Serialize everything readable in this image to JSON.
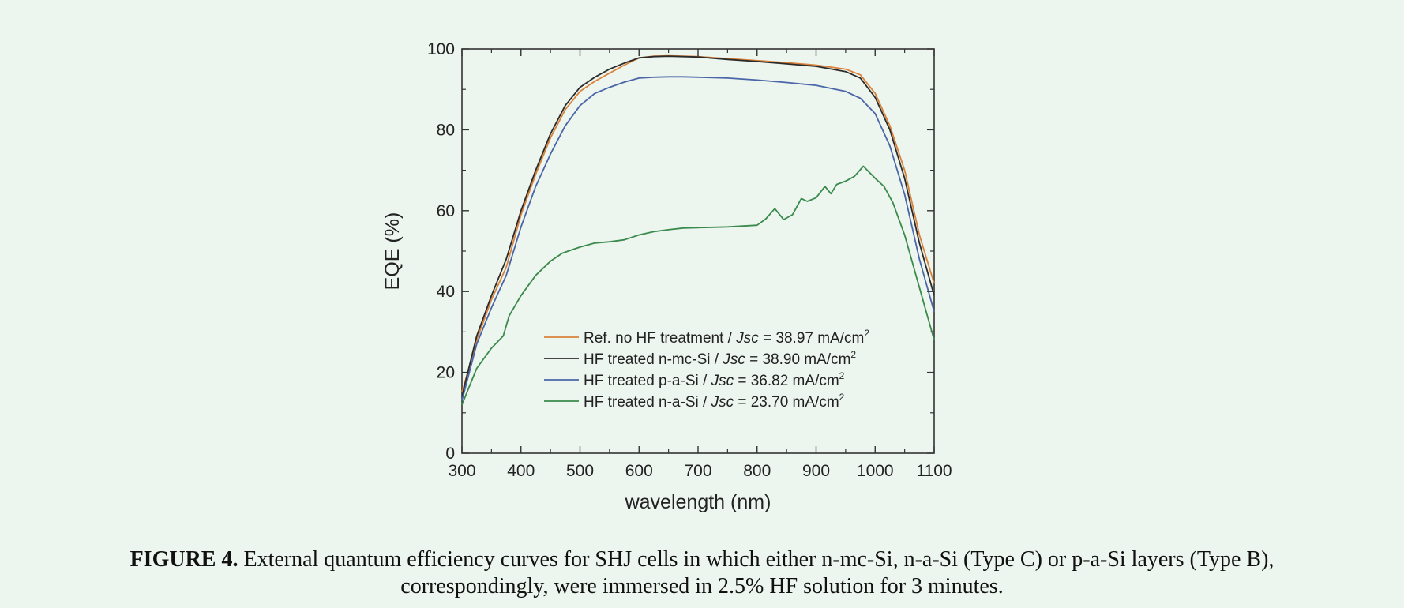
{
  "chart_data": {
    "type": "line",
    "xlabel": "wavelength (nm)",
    "ylabel": "EQE (%)",
    "xlim": [
      300,
      1100
    ],
    "ylim": [
      0,
      100
    ],
    "xticks": [
      "300",
      "400",
      "500",
      "600",
      "700",
      "800",
      "900",
      "1000",
      "1100"
    ],
    "yticks": [
      "0",
      "20",
      "40",
      "60",
      "80",
      "100"
    ],
    "legend_position": "lower-center",
    "series": [
      {
        "name": "Ref. no HF treatment",
        "legend": {
          "prefix": "Ref. no HF treatment / ",
          "jsc_label": "Jsc",
          "value": " = 38.97 mA/cm",
          "sup": "2"
        },
        "color": "#d9823b",
        "x": [
          300,
          325,
          350,
          375,
          400,
          425,
          450,
          475,
          500,
          525,
          550,
          575,
          600,
          625,
          650,
          675,
          700,
          750,
          800,
          850,
          900,
          950,
          975,
          1000,
          1025,
          1050,
          1075,
          1100
        ],
        "y": [
          15,
          28,
          38,
          46,
          59,
          69,
          78,
          85,
          89.5,
          92,
          94,
          96,
          97.8,
          98.2,
          98.3,
          98.2,
          98.1,
          97.6,
          97.1,
          96.6,
          96.0,
          95.0,
          93.6,
          89,
          81,
          70,
          54,
          42
        ]
      },
      {
        "name": "HF treated n-mc-Si",
        "legend": {
          "prefix": "HF treated n-mc-Si / ",
          "jsc_label": "Jsc",
          "value": " = 38.90 mA/cm",
          "sup": "2"
        },
        "color": "#2b2b2b",
        "x": [
          300,
          325,
          350,
          375,
          400,
          425,
          450,
          475,
          500,
          525,
          550,
          575,
          600,
          625,
          650,
          675,
          700,
          750,
          800,
          850,
          900,
          950,
          975,
          1000,
          1025,
          1050,
          1075,
          1100
        ],
        "y": [
          14,
          29,
          39,
          48,
          60,
          70,
          79,
          86,
          90.5,
          93,
          95,
          96.5,
          97.8,
          98.1,
          98.2,
          98.1,
          98.0,
          97.4,
          96.9,
          96.3,
          95.7,
          94.4,
          92.8,
          88,
          80,
          68,
          52,
          39
        ]
      },
      {
        "name": "HF treated p-a-Si",
        "legend": {
          "prefix": "HF treated p-a-Si / ",
          "jsc_label": "Jsc",
          "value": " = 36.82 mA/cm",
          "sup": "2"
        },
        "color": "#4a66a8",
        "x": [
          300,
          325,
          350,
          375,
          400,
          425,
          450,
          475,
          500,
          525,
          550,
          575,
          600,
          625,
          650,
          675,
          700,
          750,
          800,
          850,
          900,
          950,
          975,
          1000,
          1025,
          1050,
          1075,
          1100
        ],
        "y": [
          13,
          27,
          36,
          44,
          56,
          66,
          74,
          81,
          86,
          89,
          90.5,
          91.8,
          92.8,
          93.0,
          93.1,
          93.1,
          93.0,
          92.8,
          92.3,
          91.7,
          91.0,
          89.5,
          87.8,
          84,
          76,
          64,
          48,
          35
        ]
      },
      {
        "name": "HF treated n-a-Si",
        "legend": {
          "prefix": "HF treated n-a-Si / ",
          "jsc_label": "Jsc",
          "value": " = 23.70 mA/cm",
          "sup": "2"
        },
        "color": "#3a8a4c",
        "x": [
          300,
          325,
          350,
          370,
          380,
          400,
          425,
          450,
          470,
          480,
          500,
          525,
          550,
          575,
          600,
          625,
          650,
          675,
          700,
          750,
          800,
          815,
          830,
          845,
          860,
          875,
          885,
          900,
          915,
          925,
          935,
          950,
          965,
          980,
          1000,
          1015,
          1030,
          1050,
          1075,
          1100
        ],
        "y": [
          12,
          21,
          26,
          29,
          34,
          39,
          44,
          47.5,
          49.5,
          50,
          51,
          52,
          52.3,
          52.8,
          54,
          54.8,
          55.3,
          55.7,
          55.8,
          56,
          56.4,
          58,
          60.5,
          57.8,
          59,
          63,
          62.3,
          63.2,
          66,
          64.2,
          66.5,
          67.3,
          68.5,
          71,
          68,
          66,
          62,
          54,
          41,
          28
        ]
      }
    ]
  },
  "caption": {
    "label": "FIGURE 4.",
    "line1": " External quantum efficiency curves for SHJ cells in which either n-mc-Si, n-a-Si (Type C) or p-a-Si layers (Type B),",
    "line2": "correspondingly, were immersed in 2.5% HF solution for 3 minutes."
  }
}
